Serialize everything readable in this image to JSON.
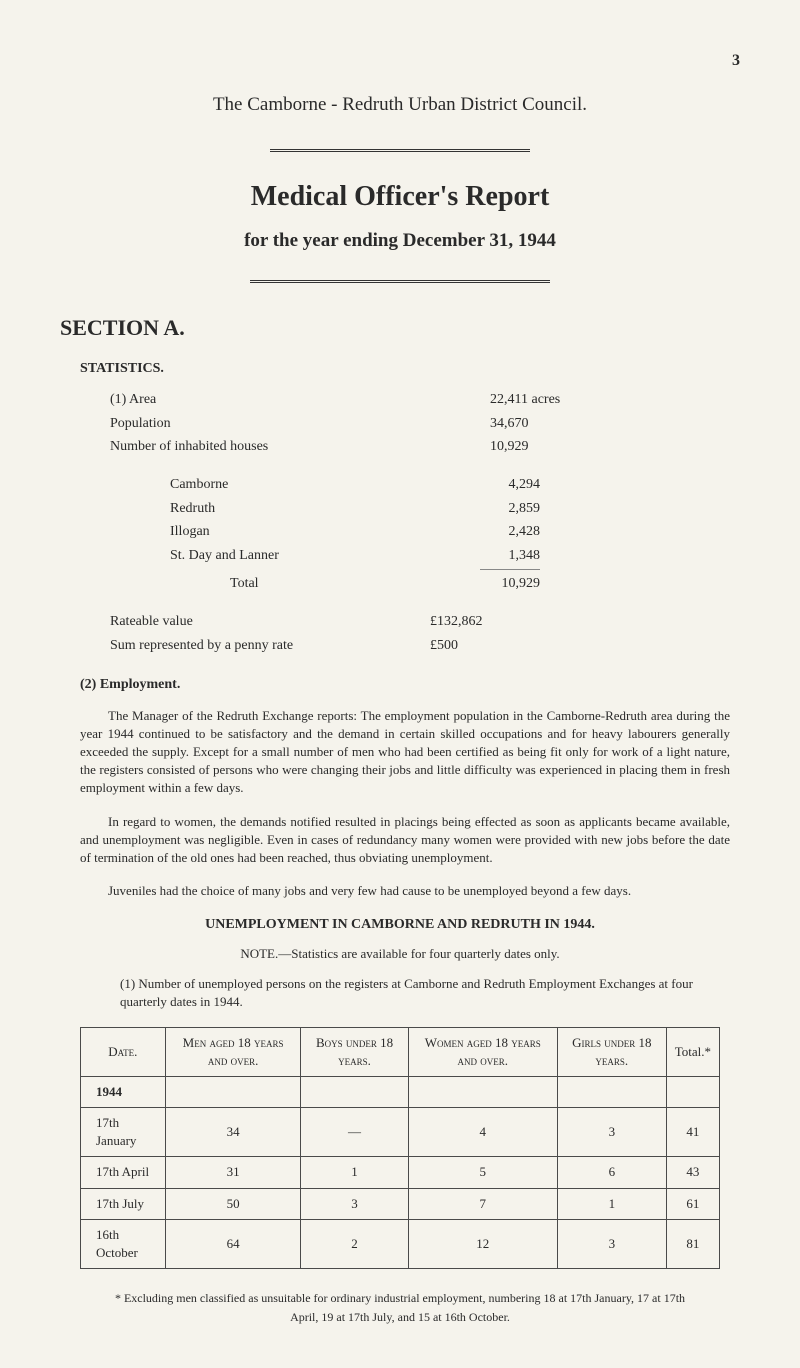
{
  "page_number": "3",
  "council_title": "The Camborne - Redruth Urban District Council.",
  "report_title": "Medical Officer's Report",
  "year_line": "for the year ending December 31, 1944",
  "section": "SECTION A.",
  "statistics_header": "STATISTICS.",
  "stats": {
    "area_label": "(1) Area",
    "area_value": "22,411 acres",
    "pop_label": "Population",
    "pop_value": "34,670",
    "houses_label": "Number of inhabited houses",
    "houses_value": "10,929",
    "camborne_label": "Camborne",
    "camborne_value": "4,294",
    "redruth_label": "Redruth",
    "redruth_value": "2,859",
    "illogan_label": "Illogan",
    "illogan_value": "2,428",
    "stday_label": "St. Day and Lanner",
    "stday_value": "1,348",
    "total_label": "Total",
    "total_value": "10,929",
    "rateable_label": "Rateable value",
    "rateable_value": "£132,862",
    "penny_label": "Sum represented by a penny rate",
    "penny_value": "£500"
  },
  "employment_header": "(2) Employment.",
  "para1": "The Manager of the Redruth Exchange reports: The employment population in the Camborne-Redruth area during the year 1944 continued to be satisfactory and the demand in certain skilled occupations and for heavy labourers generally exceeded the supply. Except for a small number of men who had been certified as being fit only for work of a light nature, the registers consisted of persons who were changing their jobs and little difficulty was experienced in placing them in fresh employment within a few days.",
  "para2": "In regard to women, the demands notified resulted in placings being effected as soon as applicants became available, and unemployment was negligible. Even in cases of redundancy many women were provided with new jobs before the date of termination of the old ones had been reached, thus obviating unemployment.",
  "para3": "Juveniles had the choice of many jobs and very few had cause to be unemployed beyond a few days.",
  "unemployment_title": "UNEMPLOYMENT IN CAMBORNE AND REDRUTH IN 1944.",
  "note_line": "NOTE.—Statistics are available for four quarterly dates only.",
  "list1": "(1) Number of unemployed persons on the registers at Camborne and Redruth Employment Exchanges at four quarterly dates in 1944.",
  "table": {
    "headers": {
      "date": "Date.",
      "men": "Men aged 18 years and over.",
      "boys": "Boys under 18 years.",
      "women": "Women aged 18 years and over.",
      "girls": "Girls under 18 years.",
      "total": "Total.*"
    },
    "year": "1944",
    "rows": [
      {
        "date": "17th January",
        "men": "34",
        "boys": "—",
        "women": "4",
        "girls": "3",
        "total": "41"
      },
      {
        "date": "17th April",
        "men": "31",
        "boys": "1",
        "women": "5",
        "girls": "6",
        "total": "43"
      },
      {
        "date": "17th July",
        "men": "50",
        "boys": "3",
        "women": "7",
        "girls": "1",
        "total": "61"
      },
      {
        "date": "16th October",
        "men": "64",
        "boys": "2",
        "women": "12",
        "girls": "3",
        "total": "81"
      }
    ]
  },
  "footnote": "* Excluding men classified as unsuitable for ordinary industrial employment, numbering 18 at 17th January, 17 at 17th April, 19 at 17th July, and 15 at 16th October."
}
